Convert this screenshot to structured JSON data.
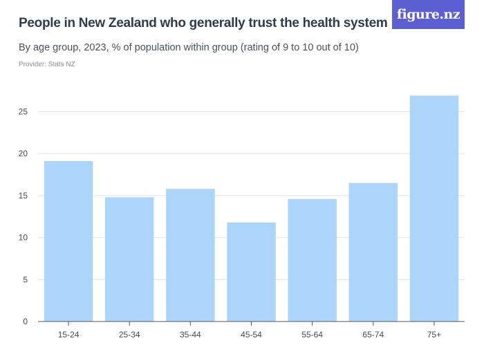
{
  "header": {
    "title": "People in New Zealand who generally trust the health system",
    "subtitle": "By age group, 2023, % of population within group (rating of 9 to 10 out of 10)",
    "provider": "Provider: Stats NZ",
    "logo": "figure.nz"
  },
  "chart_data": {
    "type": "bar",
    "categories": [
      "15-24",
      "25-34",
      "35-44",
      "45-54",
      "55-64",
      "65-74",
      "75+"
    ],
    "values": [
      19.1,
      14.8,
      15.8,
      11.8,
      14.6,
      16.5,
      26.9
    ],
    "ylim": [
      0,
      28
    ],
    "yticks": [
      0,
      5,
      10,
      15,
      20,
      25
    ],
    "grid": true,
    "bar_color": "#acd5fb",
    "grid_color": "#e3e3e3"
  }
}
